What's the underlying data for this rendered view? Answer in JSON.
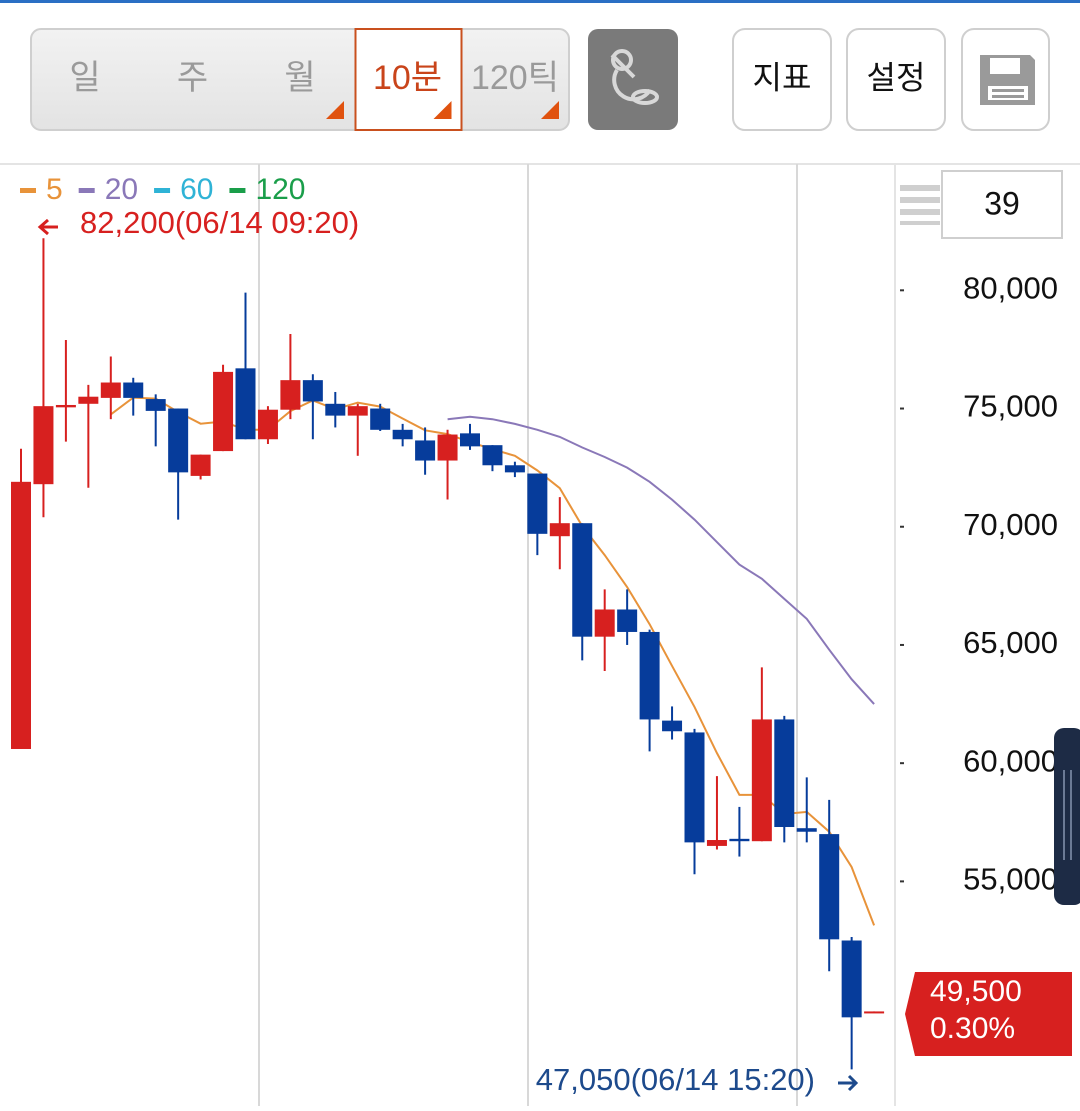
{
  "toolbar": {
    "tabs": [
      "일",
      "주",
      "월",
      "10분",
      "120틱"
    ],
    "selected_tab": 3,
    "buttons": [
      "지표",
      "설정"
    ]
  },
  "chart_data": {
    "type": "candlestick",
    "visible_count": 39,
    "up_color": "#d7201f",
    "down_color": "#063c9b",
    "open": [
      60600,
      71800,
      75050,
      75200,
      75450,
      76100,
      75400,
      75000,
      72150,
      73200,
      76700,
      73700,
      74950,
      76200,
      75200,
      74700,
      75000,
      74100,
      73650,
      72800,
      73950,
      73450,
      72600,
      72250,
      69600,
      70150,
      65350,
      66500,
      65550,
      61800,
      61300,
      56500,
      56800,
      56700,
      61850,
      57250,
      57000,
      52500,
      49450
    ],
    "high": [
      73300,
      82200,
      77900,
      76000,
      77200,
      76300,
      75600,
      75000,
      73050,
      76850,
      79900,
      75100,
      78150,
      76450,
      75700,
      75200,
      75200,
      74350,
      74200,
      74100,
      74350,
      73450,
      72750,
      72250,
      71250,
      70150,
      67350,
      67350,
      65650,
      62400,
      61450,
      59450,
      58150,
      64050,
      62000,
      59400,
      58450,
      52650,
      49500
    ],
    "low": [
      60600,
      70400,
      73600,
      71650,
      74550,
      74700,
      73400,
      70300,
      72000,
      73200,
      73700,
      73500,
      74550,
      73700,
      74200,
      73000,
      74050,
      73400,
      72200,
      71150,
      73250,
      72350,
      72100,
      68800,
      68200,
      64350,
      63900,
      65000,
      60500,
      61000,
      55300,
      56350,
      56050,
      56700,
      56650,
      56650,
      51200,
      47050,
      49450
    ],
    "close": [
      71900,
      75100,
      75150,
      75500,
      76100,
      75450,
      74900,
      72300,
      73050,
      76550,
      73700,
      74950,
      76200,
      75300,
      74700,
      75100,
      74100,
      73700,
      72800,
      73900,
      73400,
      72600,
      72300,
      69700,
      70150,
      65350,
      66500,
      65550,
      61850,
      61350,
      56650,
      56750,
      56700,
      61850,
      57300,
      57100,
      52550,
      49250,
      49500
    ],
    "series": [
      {
        "name": "5",
        "color": "#e8933a",
        "values": [
          null,
          null,
          null,
          null,
          74750,
          75460,
          75420,
          74850,
          74360,
          74450,
          74100,
          74110,
          74890,
          75340,
          74970,
          75250,
          75080,
          74580,
          74080,
          73920,
          73580,
          73280,
          73000,
          72380,
          71630,
          70020,
          68800,
          67450,
          65880,
          64120,
          62380,
          60430,
          58660,
          58660,
          57850,
          57940,
          57100,
          55610,
          53140
        ]
      },
      {
        "name": "20",
        "color": "#8a78b8",
        "values": [
          null,
          null,
          null,
          null,
          null,
          null,
          null,
          null,
          null,
          null,
          null,
          null,
          null,
          null,
          null,
          null,
          null,
          null,
          null,
          74550,
          74650,
          74550,
          74350,
          74100,
          73800,
          73350,
          72950,
          72500,
          71900,
          71150,
          70300,
          69350,
          68400,
          67800,
          66950,
          66100,
          64800,
          63550,
          62500
        ]
      },
      {
        "name": "60",
        "color": "#2fb3d6",
        "values": [
          null,
          null,
          null,
          null,
          null,
          null,
          null,
          null,
          null,
          null,
          null,
          null,
          null,
          null,
          null,
          null,
          null,
          null,
          null,
          null,
          null,
          null,
          null,
          null,
          null,
          null,
          null,
          null,
          null,
          null,
          null,
          null,
          null,
          null,
          null,
          null,
          null,
          null,
          null
        ]
      },
      {
        "name": "120",
        "color": "#1a9e4a",
        "values": [
          null,
          null,
          null,
          null,
          null,
          null,
          null,
          null,
          null,
          null,
          null,
          null,
          null,
          null,
          null,
          null,
          null,
          null,
          null,
          null,
          null,
          null,
          null,
          null,
          null,
          null,
          null,
          null,
          null,
          null,
          null,
          null,
          null,
          null,
          null,
          null,
          null,
          null,
          null
        ]
      }
    ],
    "ylim": [
      45500,
      85300
    ],
    "yticks": [
      {
        "value": 55000,
        "label": "55,000"
      },
      {
        "value": 60000,
        "label": "60,000"
      },
      {
        "value": 65000,
        "label": "65,000"
      },
      {
        "value": 70000,
        "label": "70,000"
      },
      {
        "value": 75000,
        "label": "75,000"
      },
      {
        "value": 80000,
        "label": "80,000"
      }
    ],
    "annotations": [
      "82,200(06/14 09:20)",
      "47,050(06/14 15:20)"
    ],
    "current_price": {
      "value": 49500,
      "label": "49,500"
    },
    "change_label": "0.30%"
  }
}
